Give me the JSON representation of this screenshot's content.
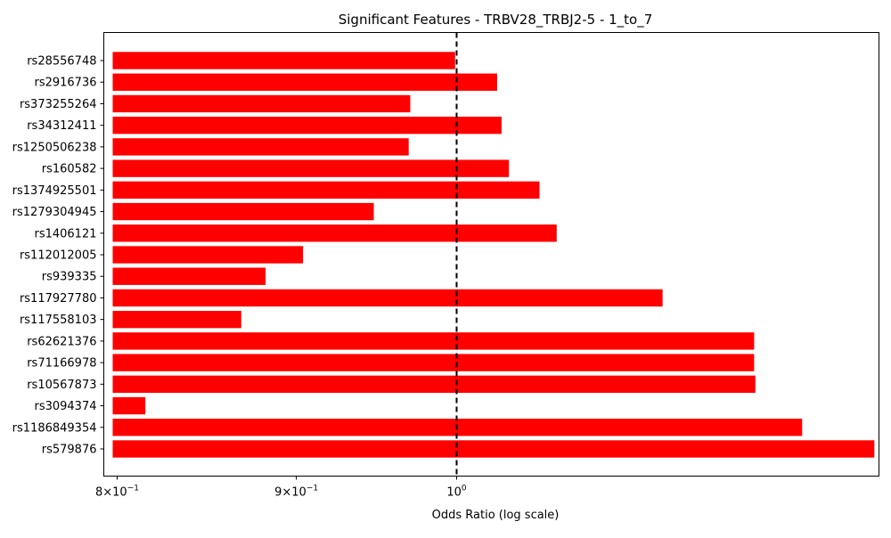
{
  "chart_data": {
    "type": "bar",
    "orientation": "horizontal",
    "title": "Significant Features - TRBV28_TRBJ2-5 - 1_to_7",
    "xlabel": "Odds Ratio (log scale)",
    "ylabel": "",
    "x_scale": "log",
    "xlim": [
      0.793,
      1.32
    ],
    "x_ticks": [
      {
        "value": 0.8,
        "base": "8",
        "exp": "−1"
      },
      {
        "value": 0.9,
        "base": "9",
        "exp": "−1"
      },
      {
        "value": 1.0,
        "base": "10",
        "exp": "0"
      }
    ],
    "reference_line": {
      "value": 1.0,
      "style": "dashed",
      "color": "#000000"
    },
    "bar_color": "#ff0000",
    "grid": false,
    "categories": [
      "rs28556748",
      "rs2916736",
      "rs373255264",
      "rs34312411",
      "rs1250506238",
      "rs160582",
      "rs1374925501",
      "rs1279304945",
      "rs1406121",
      "rs112012005",
      "rs939335",
      "rs117927780",
      "rs117558103",
      "rs62621376",
      "rs71166978",
      "rs10567873",
      "rs3094374",
      "rs1186849354",
      "rs579876"
    ],
    "values": [
      0.999,
      1.027,
      0.97,
      1.03,
      0.969,
      1.035,
      1.056,
      0.947,
      1.068,
      0.904,
      0.882,
      1.145,
      0.868,
      1.216,
      1.216,
      1.217,
      0.815,
      1.255,
      1.316
    ]
  }
}
